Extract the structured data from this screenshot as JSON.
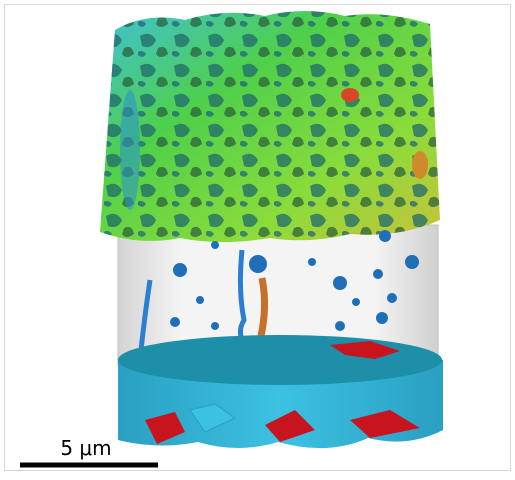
{
  "scale_bar": {
    "label": "5 μm"
  }
}
